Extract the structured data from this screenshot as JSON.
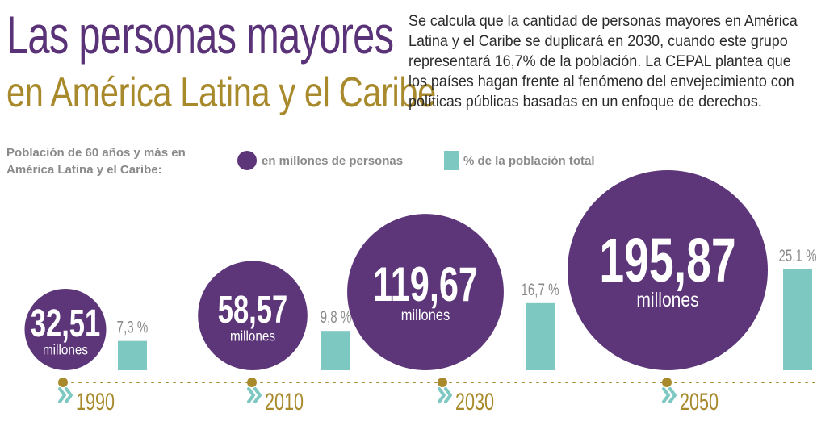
{
  "header": {
    "title_line1": "Las personas mayores",
    "title_line2": "en América Latina y el Caribe",
    "intro": "Se calcula que la cantidad de personas mayores en América Latina y el Caribe se duplicará en 2030, cuando este grupo representará 16,7% de la población. La CEPAL plantea que los países hagan frente al fenómeno del envejecimiento con políticas públicas basadas en un enfoque de derechos."
  },
  "legend": {
    "subtitle": "Población de 60 años y más en América Latina y el Caribe:",
    "circle_label": "en millones de personas",
    "bar_label": "% de la población total"
  },
  "colors": {
    "title_purple": "#5a3278",
    "title_gold": "#a88a2c",
    "circle": "#5c3679",
    "bar": "#7ec8c2",
    "year_text": "#a88a2c",
    "timeline_dot": "#a88a2c",
    "chevron": "#7ec8c2"
  },
  "chart_data": {
    "type": "bubble-bar",
    "categories": [
      "1990",
      "2010",
      "2030",
      "2050"
    ],
    "series": [
      {
        "name": "en millones de personas",
        "values": [
          32.51,
          58.57,
          119.67,
          195.87
        ],
        "labels": [
          "32,51",
          "58,57",
          "119,67",
          "195,87"
        ],
        "unit_label": "millones"
      },
      {
        "name": "% de la población total",
        "values": [
          7.3,
          9.8,
          16.7,
          25.1
        ],
        "labels": [
          "7,3 %",
          "9,8 %",
          "16,7 %",
          "25,1 %"
        ]
      }
    ]
  }
}
